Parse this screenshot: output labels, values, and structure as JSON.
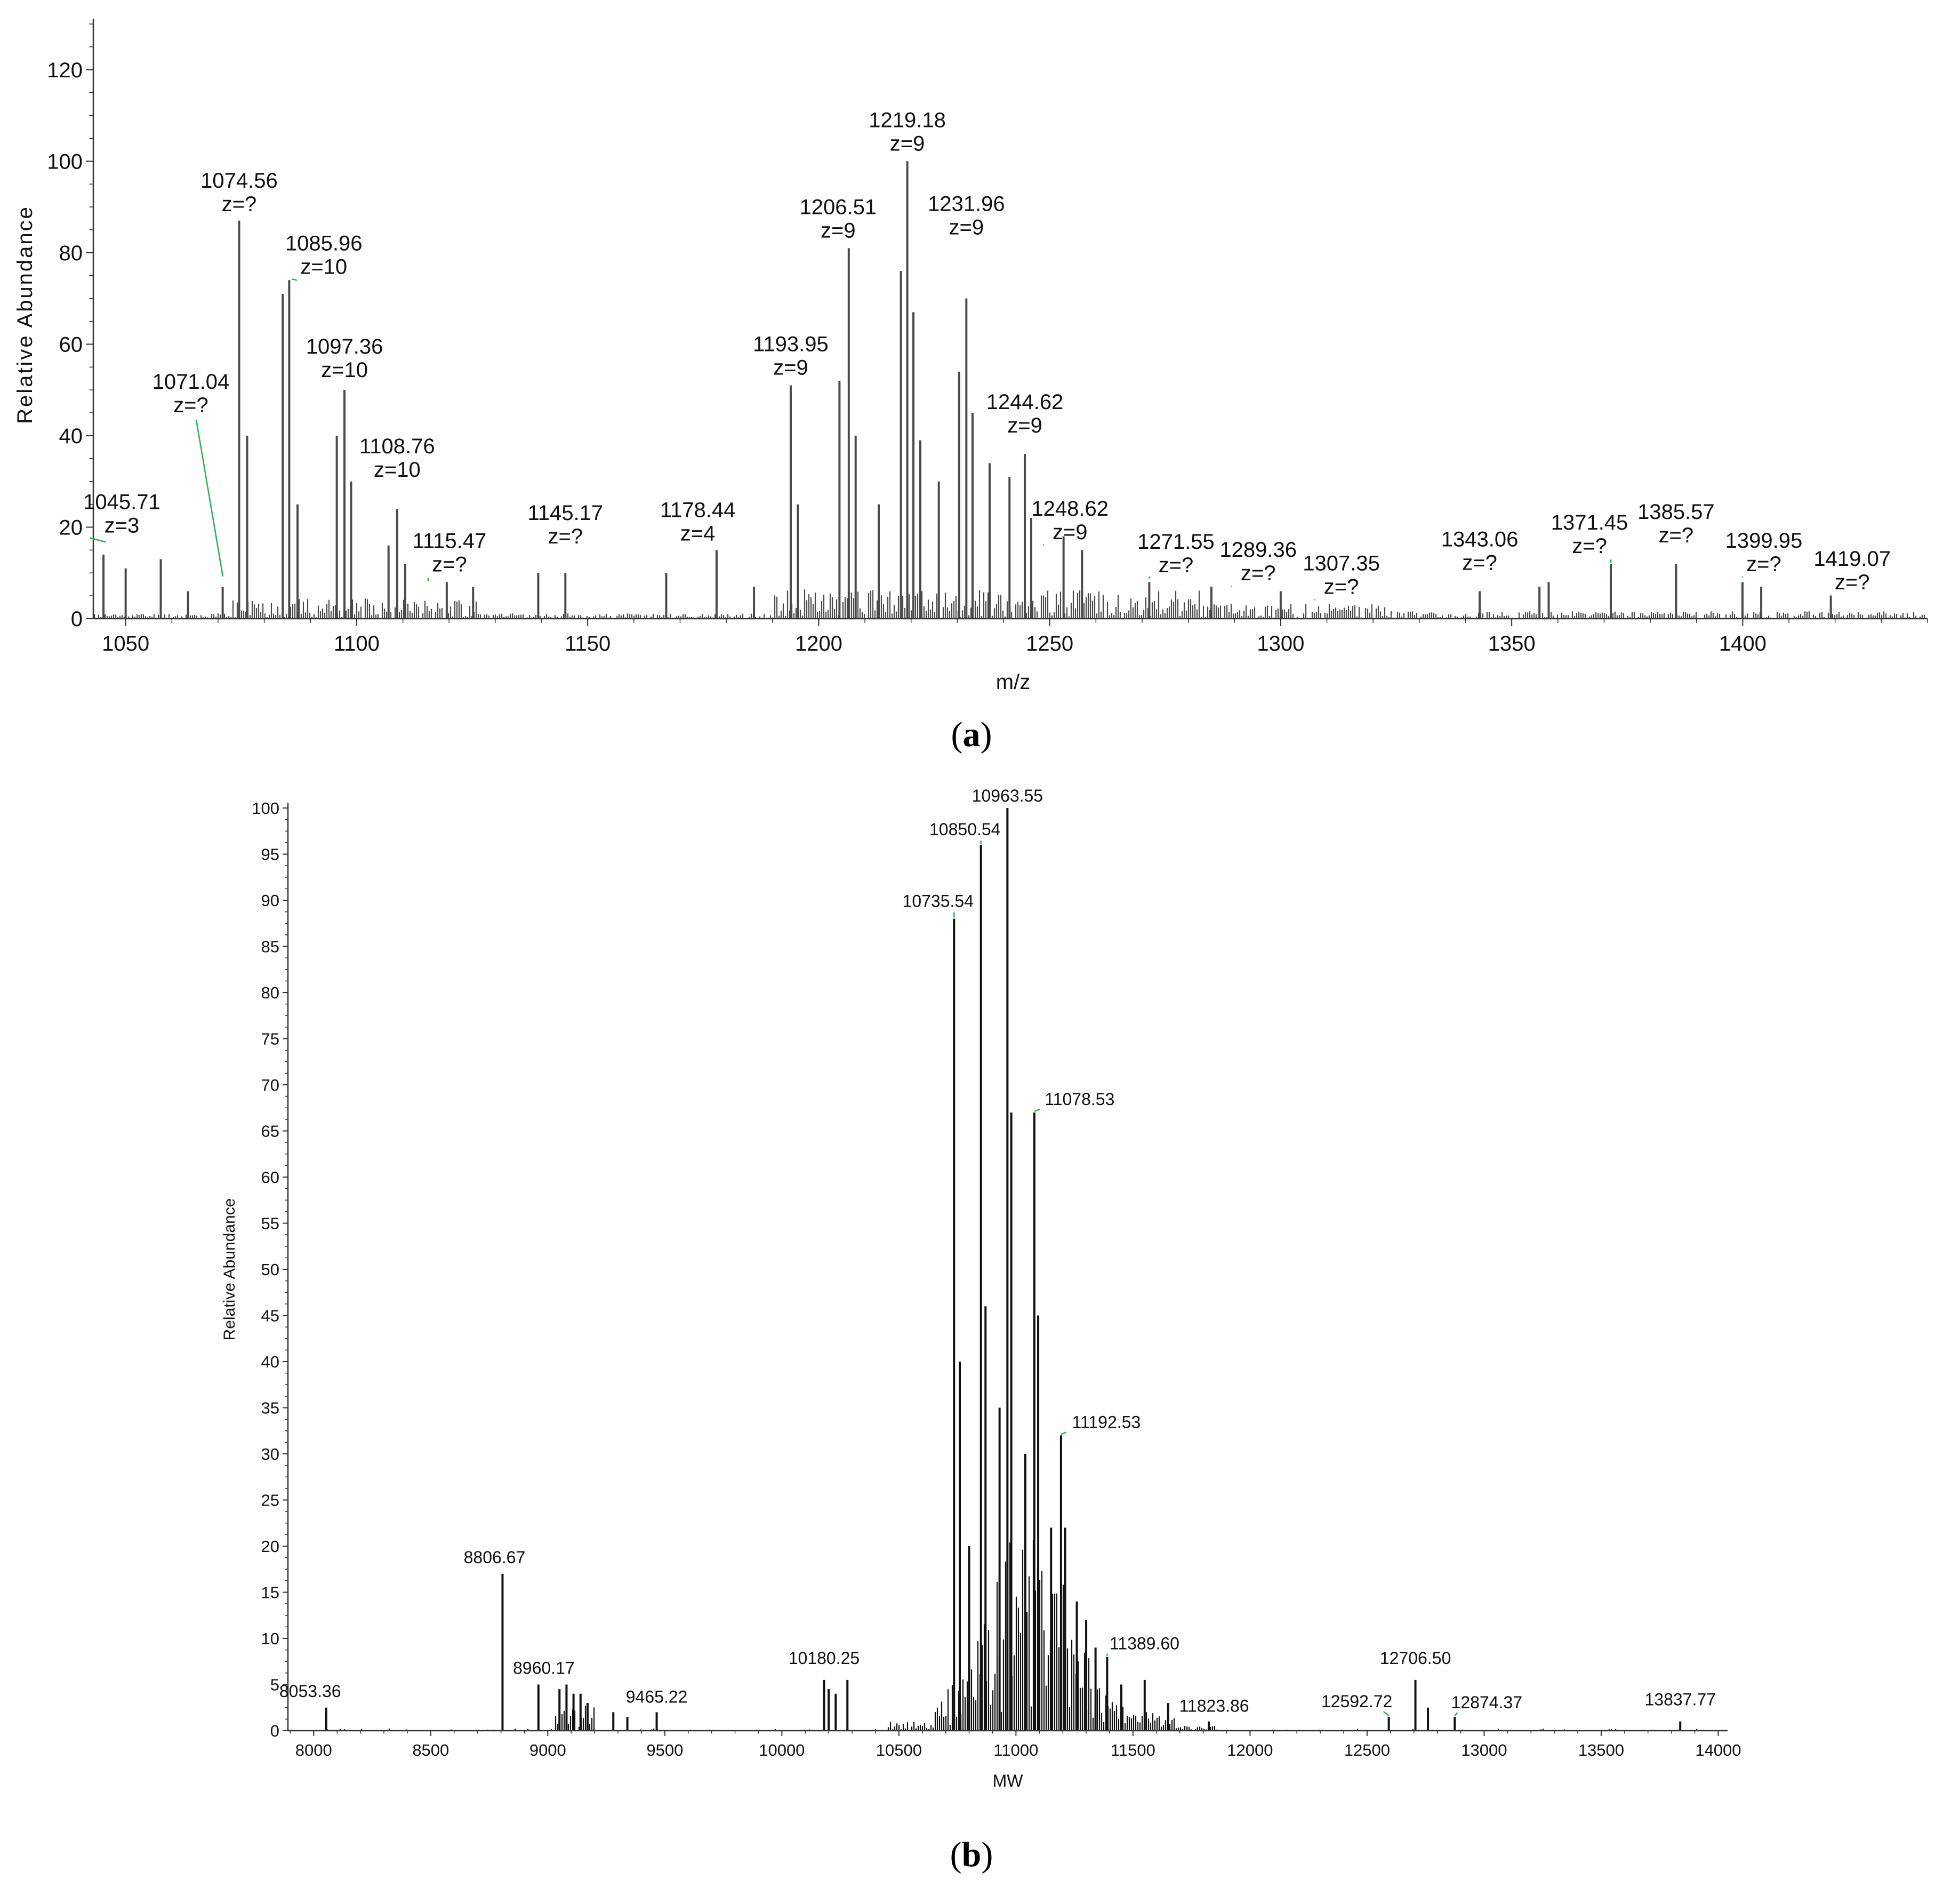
{
  "figure": {
    "caption_a": "a",
    "caption_b": "b"
  },
  "colors": {
    "axis": "#333333",
    "peak_a": "#4a4a4a",
    "peak_b": "#111111",
    "leader": "#22b14c",
    "text": "#111111"
  },
  "chart_data": [
    {
      "id": "a",
      "type": "line",
      "title": "",
      "xlabel": "m/z",
      "ylabel": "Relative Abundance",
      "xlim": [
        1043,
        1440
      ],
      "ylim": [
        0,
        130
      ],
      "xticks": [
        1050,
        1100,
        1150,
        1200,
        1250,
        1300,
        1350,
        1400
      ],
      "yticks": [
        0,
        20,
        40,
        60,
        80,
        100,
        120
      ],
      "xtick_labels": [
        "1050",
        "1100",
        "1150",
        "1200",
        "1250",
        "1300",
        "1350",
        "1400"
      ],
      "ytick_labels": [
        "0",
        "20",
        "40",
        "60",
        "80",
        "100",
        "120"
      ],
      "peaks": [
        [
          1045.2,
          14
        ],
        [
          1050.0,
          11
        ],
        [
          1057.6,
          13
        ],
        [
          1063.5,
          6
        ],
        [
          1071.0,
          7
        ],
        [
          1074.56,
          87
        ],
        [
          1076.3,
          40
        ],
        [
          1084.0,
          71
        ],
        [
          1085.4,
          74
        ],
        [
          1087.2,
          25
        ],
        [
          1095.7,
          40
        ],
        [
          1097.36,
          50
        ],
        [
          1098.8,
          30
        ],
        [
          1106.9,
          16
        ],
        [
          1108.76,
          24
        ],
        [
          1110.5,
          12
        ],
        [
          1119.5,
          8
        ],
        [
          1125.2,
          7
        ],
        [
          1139.3,
          10
        ],
        [
          1145.17,
          10
        ],
        [
          1167.0,
          10
        ],
        [
          1177.9,
          15
        ],
        [
          1186.0,
          7
        ],
        [
          1193.95,
          51
        ],
        [
          1195.5,
          25
        ],
        [
          1204.5,
          52
        ],
        [
          1206.51,
          81
        ],
        [
          1208.0,
          40
        ],
        [
          1213.0,
          25
        ],
        [
          1217.8,
          76
        ],
        [
          1219.18,
          100
        ],
        [
          1220.5,
          67
        ],
        [
          1222.0,
          39
        ],
        [
          1226.0,
          30
        ],
        [
          1230.4,
          54
        ],
        [
          1231.96,
          70
        ],
        [
          1233.3,
          45
        ],
        [
          1237.0,
          34
        ],
        [
          1241.3,
          31
        ],
        [
          1244.62,
          36
        ],
        [
          1246.0,
          22
        ],
        [
          1253.0,
          18
        ],
        [
          1257.0,
          15
        ],
        [
          1271.55,
          8
        ],
        [
          1285.0,
          7
        ],
        [
          1300.0,
          6
        ],
        [
          1343.06,
          6
        ],
        [
          1356.0,
          7
        ],
        [
          1358.0,
          8
        ],
        [
          1371.45,
          12
        ],
        [
          1385.57,
          12
        ],
        [
          1399.95,
          8
        ],
        [
          1404.0,
          7
        ],
        [
          1419.07,
          5
        ]
      ],
      "labels": [
        {
          "mz": "1045.71",
          "z": "z=3",
          "x": 1045.71,
          "y": 16.5
        },
        {
          "mz": "1071.04",
          "z": "z=?",
          "x": 1071.04,
          "y": 9.0
        },
        {
          "mz": "1074.56",
          "z": "z=?",
          "x": 1074.56,
          "y": 87
        },
        {
          "mz": "1085.96",
          "z": "z=10",
          "x": 1085.96,
          "y": 74
        },
        {
          "mz": "1097.36",
          "z": "z=10",
          "x": 1097.36,
          "y": 50
        },
        {
          "mz": "1108.76",
          "z": "z=10",
          "x": 1108.76,
          "y": 24
        },
        {
          "mz": "1115.47",
          "z": "z=?",
          "x": 1115.47,
          "y": 8
        },
        {
          "mz": "1145.17",
          "z": "z=?",
          "x": 1145.17,
          "y": 10
        },
        {
          "mz": "1178.44",
          "z": "z=4",
          "x": 1178.44,
          "y": 15
        },
        {
          "mz": "1193.95",
          "z": "z=9",
          "x": 1193.95,
          "y": 51
        },
        {
          "mz": "1206.51",
          "z": "z=9",
          "x": 1206.51,
          "y": 81
        },
        {
          "mz": "1219.18",
          "z": "z=9",
          "x": 1219.18,
          "y": 100
        },
        {
          "mz": "1231.96",
          "z": "z=9",
          "x": 1231.96,
          "y": 70
        },
        {
          "mz": "1244.62",
          "z": "z=9",
          "x": 1244.62,
          "y": 36
        },
        {
          "mz": "1248.62",
          "z": "z=9",
          "x": 1248.62,
          "y": 16
        },
        {
          "mz": "1271.55",
          "z": "z=?",
          "x": 1271.55,
          "y": 9
        },
        {
          "mz": "1289.36",
          "z": "z=?",
          "x": 1289.36,
          "y": 7
        },
        {
          "mz": "1307.35",
          "z": "z=?",
          "x": 1307.35,
          "y": 4
        },
        {
          "mz": "1343.06",
          "z": "z=?",
          "x": 1343.06,
          "y": 6
        },
        {
          "mz": "1371.45",
          "z": "z=?",
          "x": 1371.45,
          "y": 12
        },
        {
          "mz": "1385.57",
          "z": "z=?",
          "x": 1385.57,
          "y": 12
        },
        {
          "mz": "1399.95",
          "z": "z=?",
          "x": 1399.95,
          "y": 9
        },
        {
          "mz": "1419.07",
          "z": "z=?",
          "x": 1419.07,
          "y": 5
        }
      ]
    },
    {
      "id": "b",
      "type": "line",
      "title": "",
      "xlabel": "MW",
      "ylabel": "Relative Abundance",
      "xlim": [
        7890,
        14040
      ],
      "ylim": [
        0,
        100
      ],
      "xticks": [
        8000,
        8500,
        9000,
        9500,
        10000,
        10500,
        11000,
        11500,
        12000,
        12500,
        13000,
        13500,
        14000
      ],
      "yticks": [
        0,
        5,
        10,
        15,
        20,
        25,
        30,
        35,
        40,
        45,
        50,
        55,
        60,
        65,
        70,
        75,
        80,
        85,
        90,
        95,
        100
      ],
      "xtick_labels": [
        "8000",
        "8500",
        "9000",
        "9500",
        "10000",
        "10500",
        "11000",
        "11500",
        "12000",
        "12500",
        "13000",
        "13500",
        "14000"
      ],
      "ytick_labels": [
        "0",
        "5",
        "10",
        "15",
        "20",
        "25",
        "30",
        "35",
        "40",
        "45",
        "50",
        "55",
        "60",
        "65",
        "70",
        "75",
        "80",
        "85",
        "90",
        "95",
        "100"
      ],
      "peaks": [
        [
          8053.36,
          2.5
        ],
        [
          8806.67,
          17
        ],
        [
          8960.17,
          5
        ],
        [
          9050,
          4.5
        ],
        [
          9080,
          5
        ],
        [
          9110,
          4
        ],
        [
          9140,
          4
        ],
        [
          9170,
          3
        ],
        [
          9280,
          2
        ],
        [
          9340,
          1.5
        ],
        [
          9465.22,
          2
        ],
        [
          10180.25,
          5.5
        ],
        [
          10200,
          4.5
        ],
        [
          10230,
          4
        ],
        [
          10280,
          5.5
        ],
        [
          10735.54,
          88
        ],
        [
          10760,
          40
        ],
        [
          10800,
          20
        ],
        [
          10850.54,
          96
        ],
        [
          10870,
          46
        ],
        [
          10930,
          35
        ],
        [
          10963.55,
          100
        ],
        [
          10980,
          67
        ],
        [
          11040,
          30
        ],
        [
          11078.53,
          67
        ],
        [
          11095,
          45
        ],
        [
          11150,
          22
        ],
        [
          11192.53,
          32
        ],
        [
          11210,
          22
        ],
        [
          11260,
          14
        ],
        [
          11300,
          12
        ],
        [
          11340,
          9
        ],
        [
          11389.6,
          8
        ],
        [
          11450,
          5
        ],
        [
          11550,
          5.5
        ],
        [
          11650,
          3
        ],
        [
          11823.86,
          1
        ],
        [
          12592.72,
          1.5
        ],
        [
          12706.5,
          5.5
        ],
        [
          12760,
          2.5
        ],
        [
          12874.37,
          1.5
        ],
        [
          13837.77,
          1
        ]
      ],
      "labels": [
        {
          "mw": "8053.36",
          "x": 8053.36,
          "y": 2.5
        },
        {
          "mw": "8806.67",
          "x": 8806.67,
          "y": 17
        },
        {
          "mw": "8960.17",
          "x": 8960.17,
          "y": 5
        },
        {
          "mw": "9465.22",
          "x": 9465.22,
          "y": 2
        },
        {
          "mw": "10180.25",
          "x": 10180.25,
          "y": 5.5
        },
        {
          "mw": "10735.54",
          "x": 10735.54,
          "y": 88
        },
        {
          "mw": "10850.54",
          "x": 10850.54,
          "y": 96
        },
        {
          "mw": "10963.55",
          "x": 10963.55,
          "y": 100
        },
        {
          "mw": "11078.53",
          "x": 11078.53,
          "y": 67
        },
        {
          "mw": "11192.53",
          "x": 11192.53,
          "y": 32
        },
        {
          "mw": "11389.60",
          "x": 11389.6,
          "y": 8
        },
        {
          "mw": "11823.86",
          "x": 11823.86,
          "y": 1
        },
        {
          "mw": "12592.72",
          "x": 12592.72,
          "y": 1.5
        },
        {
          "mw": "12706.50",
          "x": 12706.5,
          "y": 5.5
        },
        {
          "mw": "12874.37",
          "x": 12874.37,
          "y": 1.5
        },
        {
          "mw": "13837.77",
          "x": 13837.77,
          "y": 1
        }
      ]
    }
  ]
}
